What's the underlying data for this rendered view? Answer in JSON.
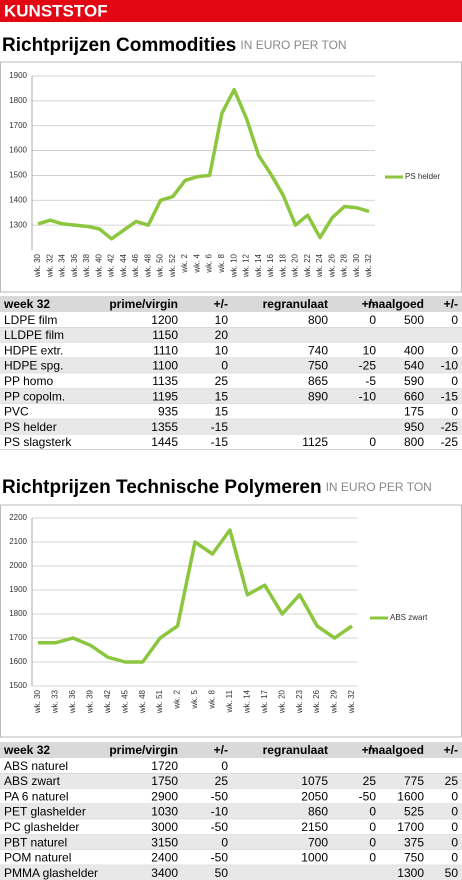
{
  "header": "KUNSTSTOF",
  "chart_data": [
    {
      "type": "line",
      "title": "Richtprijzen Commodities",
      "subtitle": "IN EURO PER TON",
      "categories": [
        "wk. 30",
        "wk. 32",
        "wk. 34",
        "wk. 36",
        "wk. 38",
        "wk. 40",
        "wk. 42",
        "wk. 44",
        "wk. 46",
        "wk. 48",
        "wk. 50",
        "wk. 52",
        "wk. 2",
        "wk. 4",
        "wk. 6",
        "wk. 8",
        "wk. 10",
        "wk. 12",
        "wk. 14",
        "wk. 16",
        "wk. 18",
        "wk. 20",
        "wk. 22",
        "wk. 24",
        "wk. 26",
        "wk. 28",
        "wk. 30",
        "wk. 32"
      ],
      "series": [
        {
          "name": "PS helder",
          "color": "#8cc63f",
          "values": [
            1305,
            1320,
            1305,
            1300,
            1295,
            1285,
            1245,
            1280,
            1315,
            1300,
            1400,
            1415,
            1480,
            1495,
            1500,
            1750,
            1845,
            1730,
            1580,
            1505,
            1420,
            1300,
            1340,
            1250,
            1330,
            1375,
            1370,
            1355
          ]
        }
      ],
      "ylim": [
        1200,
        1900
      ],
      "yticks": [
        1300,
        1400,
        1500,
        1600,
        1700,
        1800,
        1900
      ],
      "grid": true
    },
    {
      "type": "line",
      "title": "Richtprijzen Technische Polymeren",
      "subtitle": "IN EURO PER TON",
      "categories": [
        "wk. 30",
        "wk. 33",
        "wk. 36",
        "wk. 39",
        "wk. 42",
        "wk. 45",
        "wk. 48",
        "wk. 51",
        "wk. 2",
        "wk. 5",
        "wk. 8",
        "wk. 11",
        "wk. 14",
        "wk. 17",
        "wk. 20",
        "wk. 23",
        "wk. 26",
        "wk. 29",
        "wk. 32"
      ],
      "series": [
        {
          "name": "ABS zwart",
          "color": "#8cc63f",
          "values": [
            1680,
            1680,
            1700,
            1670,
            1620,
            1600,
            1600,
            1700,
            1750,
            2100,
            2050,
            2150,
            1880,
            1920,
            1800,
            1880,
            1750,
            1700,
            1750
          ]
        }
      ],
      "ylim": [
        1500,
        2200
      ],
      "yticks": [
        1500,
        1600,
        1700,
        1800,
        1900,
        2000,
        2100,
        2200
      ],
      "grid": true
    }
  ],
  "tables": [
    {
      "header": [
        "week 32",
        "prime/virgin",
        "+/-",
        "regranulaat",
        "+/-",
        "maalgoed",
        "+/-"
      ],
      "rows": [
        [
          "LDPE film",
          1200,
          10,
          800,
          0,
          500,
          0
        ],
        [
          "LLDPE film",
          1150,
          20,
          null,
          null,
          null,
          null
        ],
        [
          "HDPE extr.",
          1110,
          10,
          740,
          10,
          400,
          0
        ],
        [
          "HDPE spg.",
          1100,
          0,
          750,
          -25,
          540,
          -10
        ],
        [
          "PP homo",
          1135,
          25,
          865,
          -5,
          590,
          0
        ],
        [
          "PP copolm.",
          1195,
          15,
          890,
          -10,
          660,
          -15
        ],
        [
          "PVC",
          935,
          15,
          null,
          null,
          175,
          0
        ],
        [
          "PS helder",
          1355,
          -15,
          null,
          null,
          950,
          -25
        ],
        [
          "PS slagsterk",
          1445,
          -15,
          1125,
          0,
          800,
          -25
        ]
      ]
    },
    {
      "header": [
        "week 32",
        "prime/virgin",
        "+/-",
        "regranulaat",
        "+/-",
        "maalgoed",
        "+/-"
      ],
      "rows": [
        [
          "ABS naturel",
          1720,
          0,
          null,
          null,
          null,
          null
        ],
        [
          "ABS zwart",
          1750,
          25,
          1075,
          25,
          775,
          25
        ],
        [
          "PA 6 naturel",
          2900,
          -50,
          2050,
          -50,
          1600,
          0
        ],
        [
          "PET glashelder",
          1030,
          -10,
          860,
          0,
          525,
          0
        ],
        [
          "PC glashelder",
          3000,
          -50,
          2150,
          0,
          1700,
          0
        ],
        [
          "PBT naturel",
          3150,
          0,
          700,
          0,
          375,
          0
        ],
        [
          "POM naturel",
          2400,
          -50,
          1000,
          0,
          750,
          0
        ],
        [
          "PMMA glashelder",
          3400,
          50,
          null,
          null,
          1300,
          50
        ]
      ]
    }
  ]
}
